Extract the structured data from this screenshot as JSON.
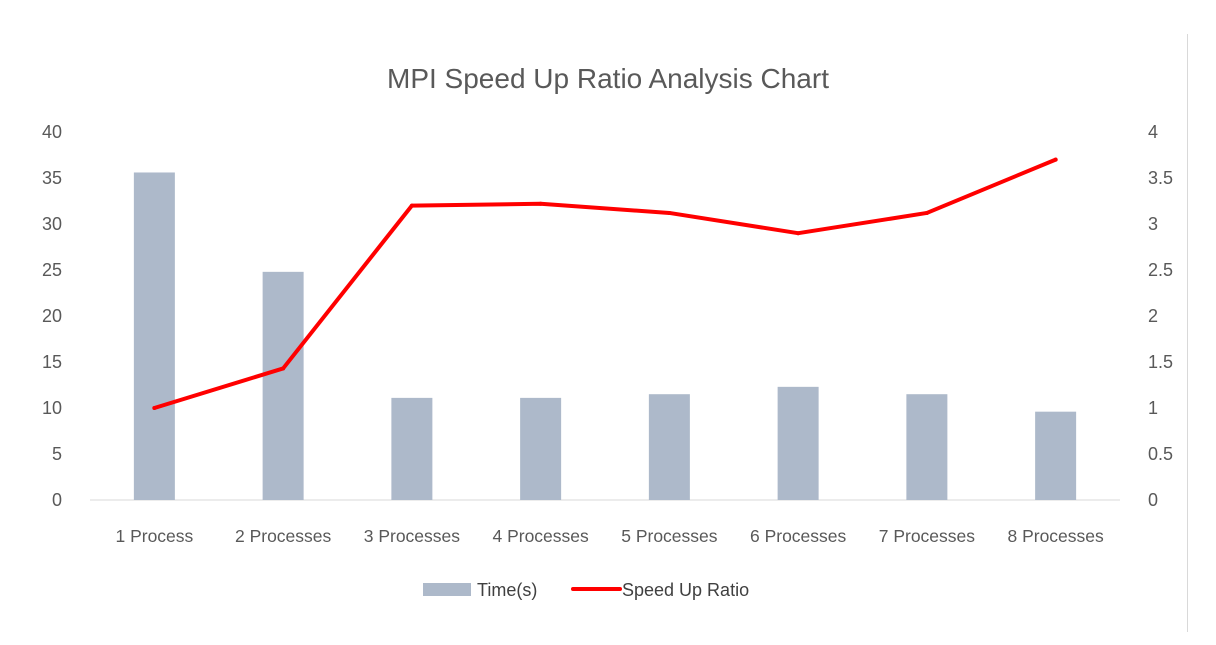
{
  "chart_data": {
    "type": "bar",
    "title": "MPI Speed Up Ratio Analysis Chart",
    "categories": [
      "1 Process",
      "2 Processes",
      "3 Processes",
      "4 Processes",
      "5 Processes",
      "6 Processes",
      "7 Processes",
      "8 Processes"
    ],
    "series": [
      {
        "name": "Time(s)",
        "type": "bar",
        "axis": "left",
        "color": "#adb9ca",
        "values": [
          35.6,
          24.8,
          11.1,
          11.1,
          11.5,
          12.3,
          11.5,
          9.6
        ]
      },
      {
        "name": "Speed Up Ratio",
        "type": "line",
        "axis": "right",
        "color": "#ff0000",
        "values": [
          1.0,
          1.43,
          3.2,
          3.22,
          3.12,
          2.9,
          3.12,
          3.7
        ]
      }
    ],
    "y_left": {
      "min": 0,
      "max": 40,
      "step": 5,
      "ticks": [
        "0",
        "5",
        "10",
        "15",
        "20",
        "25",
        "30",
        "35",
        "40"
      ]
    },
    "y_right": {
      "min": 0,
      "max": 4,
      "step": 0.5,
      "ticks": [
        "0",
        "0.5",
        "1",
        "1.5",
        "2",
        "2.5",
        "3",
        "3.5",
        "4"
      ]
    },
    "grid": false,
    "legend_position": "bottom"
  }
}
